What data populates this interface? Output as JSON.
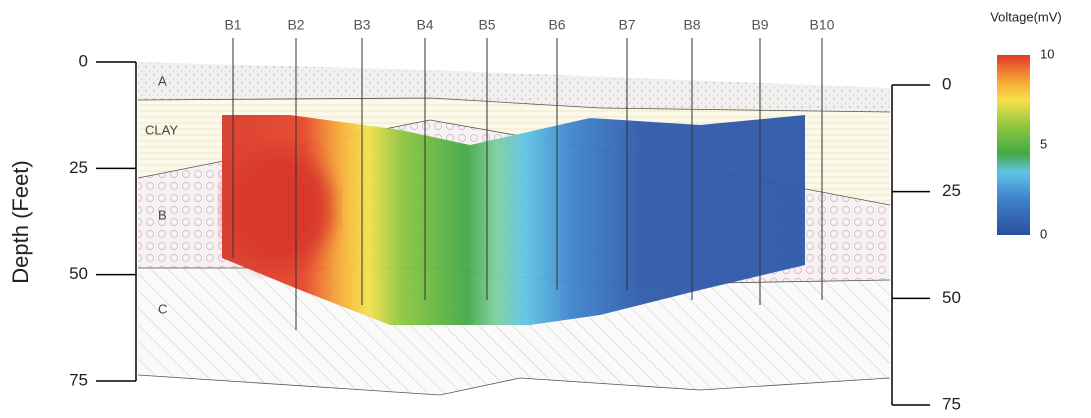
{
  "boreholes": [
    "B1",
    "B2",
    "B3",
    "B4",
    "B5",
    "B6",
    "B7",
    "B8",
    "B9",
    "B10"
  ],
  "layers": [
    "A",
    "CLAY",
    "B",
    "C"
  ],
  "left_axis": {
    "label": "Depth (Feet)",
    "ticks": [
      0,
      25,
      50,
      75
    ]
  },
  "right_axis": {
    "ticks": [
      0,
      25,
      50,
      75
    ]
  },
  "colorbar": {
    "title": "Voltage(mV)",
    "ticks": [
      0,
      5,
      10
    ]
  }
}
